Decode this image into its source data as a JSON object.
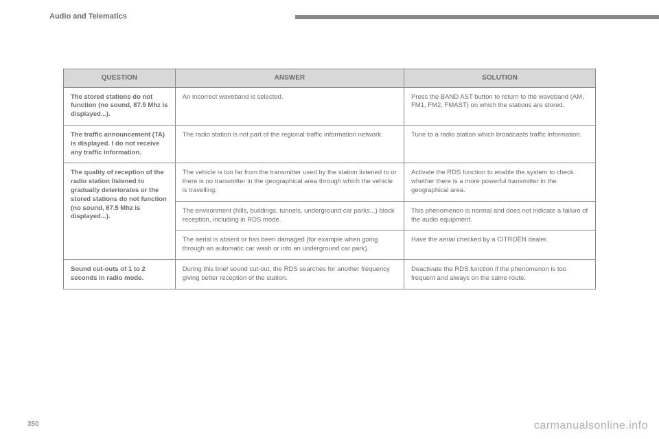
{
  "header": {
    "title": "Audio and Telematics"
  },
  "page_number": "350",
  "watermark": "carmanualsonline.info",
  "table": {
    "columns": [
      "QUESTION",
      "ANSWER",
      "SOLUTION"
    ],
    "col_widths_pct": [
      21,
      43,
      36
    ],
    "header_bg": "#d8d8d8",
    "border_color": "#8a8a8a",
    "text_color": "#6a6a6a",
    "font_size_body": 9.5,
    "font_size_header": 10,
    "rows": [
      {
        "question": "The stored stations do not function (no sound, 87.5 Mhz is displayed...).",
        "answer": "An incorrect waveband is selected.",
        "solution": "Press the BAND AST button to return to the waveband (AM, FM1, FM2, FMAST) on which the stations are stored."
      },
      {
        "question": "The traffic announcement (TA) is displayed. I do not receive any traffic information.",
        "answer": "The radio station is not part of the regional traffic information network.",
        "solution": "Tune to a radio station which broadcasts traffic information."
      },
      {
        "question": "The quality of reception of the radio station listened to gradually deteriorates or the stored stations do not function (no sound, 87.5 Mhz is displayed...).",
        "group": [
          {
            "answer": "The vehicle is too far from the transmitter used by the station listened to or there is no transmitter in the geographical area through which the vehicle is travelling.",
            "solution": "Activate the RDS function to enable the system to check whether there is a more powerful transmitter in the geographical area."
          },
          {
            "answer": "The environment (hills, buildings, tunnels, underground car parks...) block reception, including in RDS mode.",
            "solution": "This phenomenon is normal and does not indicate a failure of the audio equipment."
          },
          {
            "answer": "The aerial is absent or has been damaged (for example when going through an automatic car wash or into an underground car park).",
            "solution": "Have the aerial checked by a CITROËN dealer."
          }
        ]
      },
      {
        "question": "Sound cut-outs of 1 to 2 seconds in radio mode.",
        "answer": "During this brief sound cut-out, the RDS searches for another frequency giving better reception of the station.",
        "solution": "Deactivate the RDS function if the phenomenon is too frequent and always on the same route."
      }
    ]
  }
}
